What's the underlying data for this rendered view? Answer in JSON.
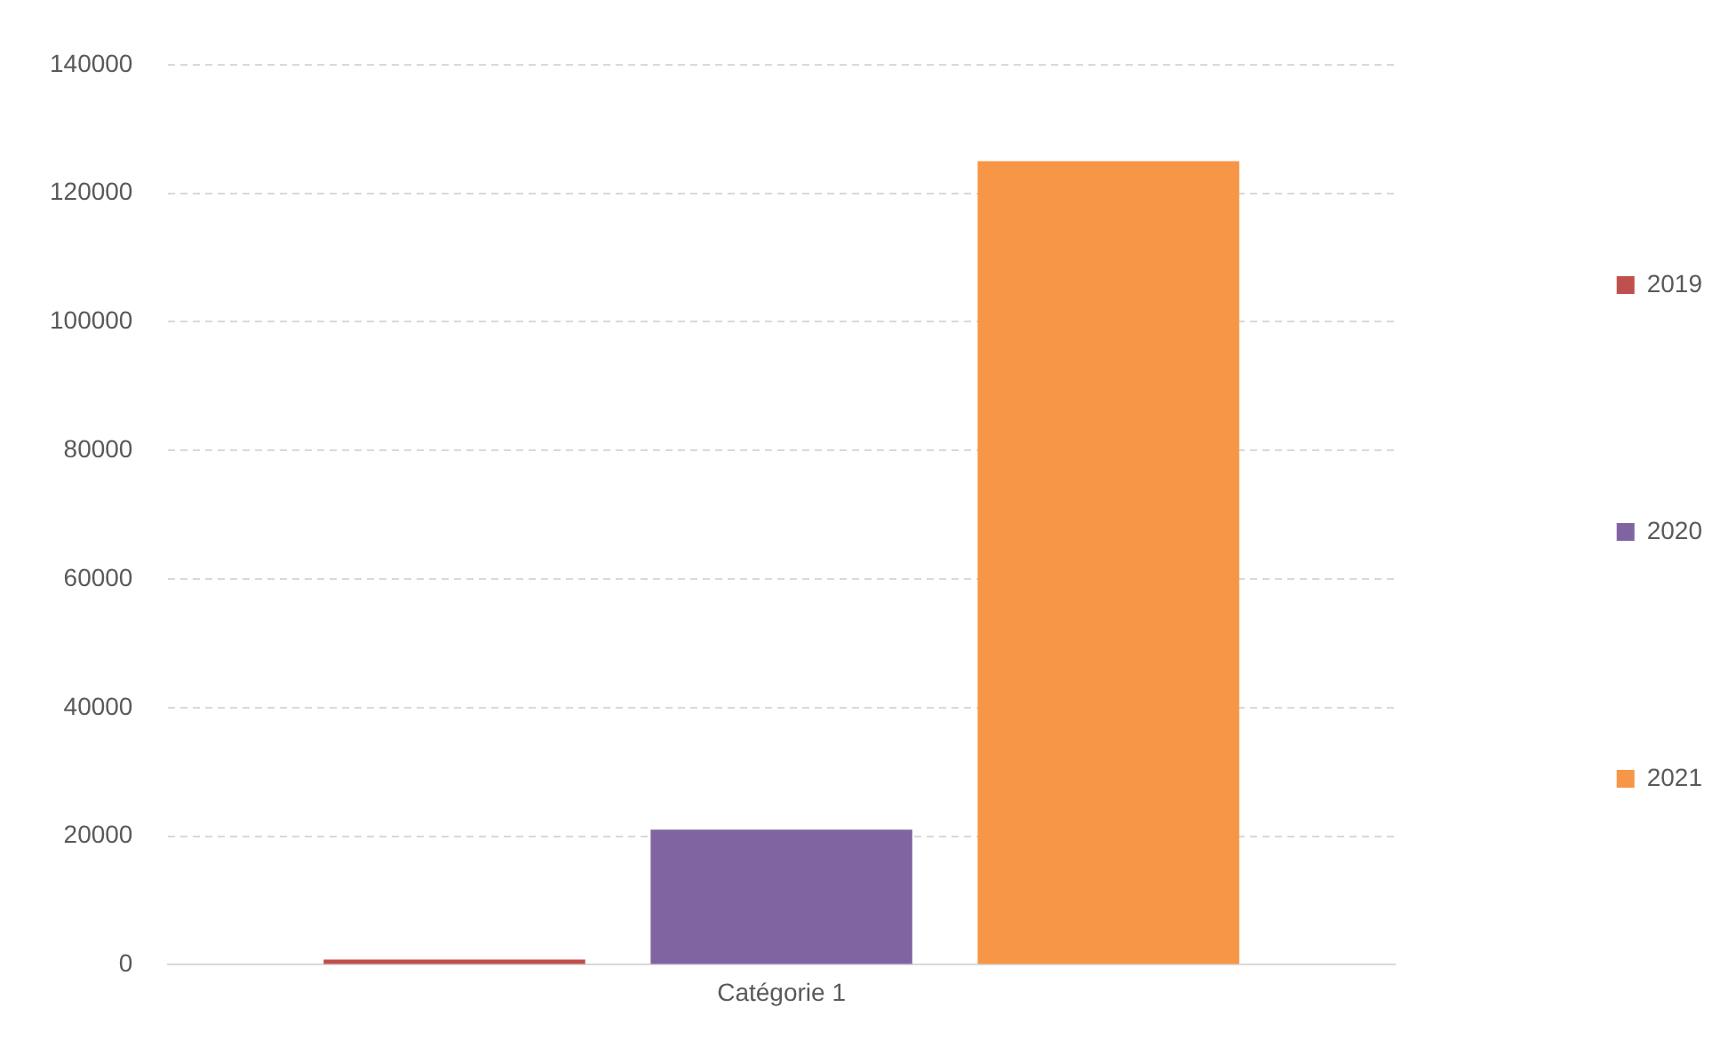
{
  "chart_data": {
    "type": "bar",
    "categories": [
      "Catégorie 1"
    ],
    "series": [
      {
        "name": "2019",
        "color": "#c0504d",
        "values": [
          800
        ]
      },
      {
        "name": "2020",
        "color": "#8064a2",
        "values": [
          21000
        ]
      },
      {
        "name": "2021",
        "color": "#f79646",
        "values": [
          125000
        ]
      }
    ],
    "ylim": [
      0,
      140000
    ],
    "yticks": [
      0,
      20000,
      40000,
      60000,
      80000,
      100000,
      120000,
      140000
    ],
    "grid": "y",
    "legend": "right"
  }
}
